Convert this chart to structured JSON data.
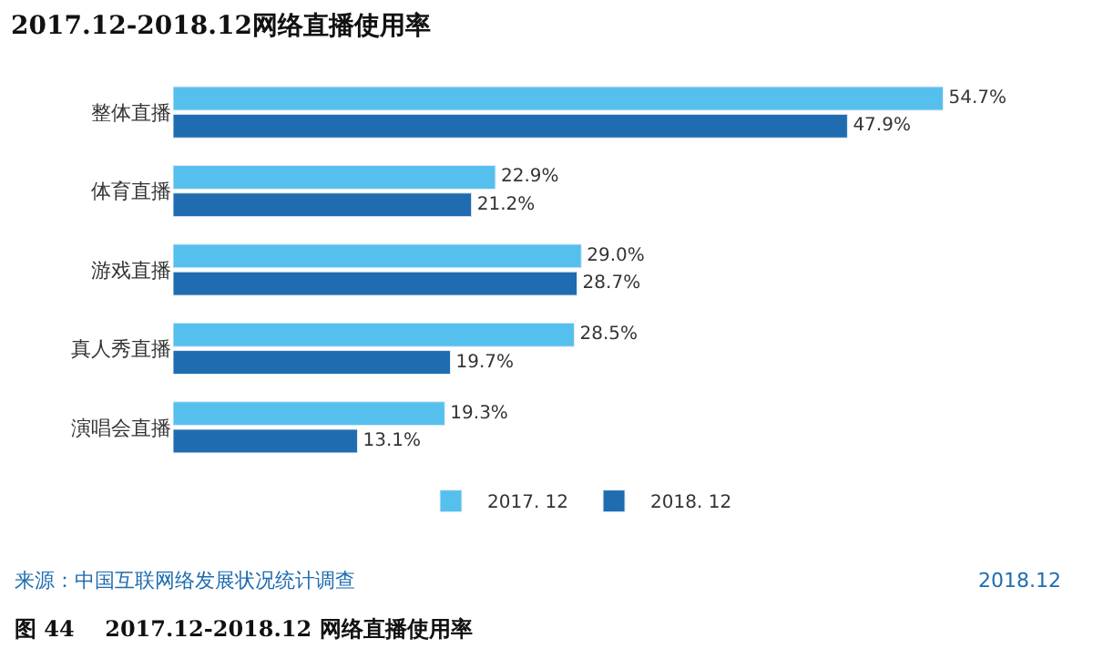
{
  "chart_data": {
    "type": "bar",
    "orientation": "horizontal",
    "title": "2017.12-2018.12网络直播使用率",
    "categories": [
      "整体直播",
      "体育直播",
      "游戏直播",
      "真人秀直播",
      "演唱会直播"
    ],
    "series": [
      {
        "name": "2017. 12",
        "color": "#55c0ee",
        "values": [
          54.7,
          22.9,
          29.0,
          28.5,
          19.3
        ],
        "value_labels": [
          "54.7%",
          "22.9%",
          "29.0%",
          "28.5%",
          "19.3%"
        ]
      },
      {
        "name": "2018. 12",
        "color": "#1f6cb0",
        "values": [
          47.9,
          21.2,
          28.7,
          19.7,
          13.1
        ],
        "value_labels": [
          "47.9%",
          "21.2%",
          "28.7%",
          "19.7%",
          "13.1%"
        ]
      }
    ],
    "legend": "bottom",
    "annotations": [
      "来源：中国互联网络发展状况统计调查",
      "2018.12",
      "图 44    2017.12-2018.12 网络直播使用率"
    ]
  }
}
